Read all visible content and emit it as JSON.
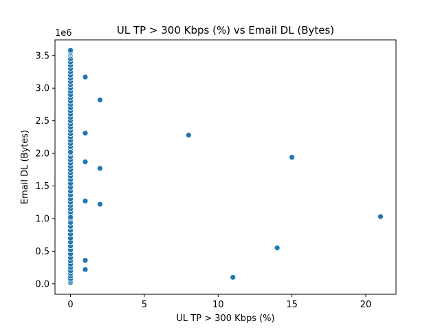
{
  "chart_data": {
    "type": "scatter",
    "title": "UL TP > 300 Kbps (%) vs Email DL (Bytes)",
    "xlabel": "UL TP > 300 Kbps (%)",
    "ylabel": "Email DL (Bytes)",
    "y_offset_label": "1e6",
    "xlim": [
      -1.05,
      22.05
    ],
    "ylim": [
      -0.16,
      3.74
    ],
    "x_ticks": [
      0,
      5,
      10,
      15,
      20
    ],
    "x_tick_labels": [
      "0",
      "5",
      "10",
      "15",
      "20"
    ],
    "y_ticks": [
      0.0,
      0.5,
      1.0,
      1.5,
      2.0,
      2.5,
      3.0,
      3.5
    ],
    "y_tick_labels": [
      "0.0",
      "0.5",
      "1.0",
      "1.5",
      "2.0",
      "2.5",
      "3.0",
      "3.5"
    ],
    "grid": false,
    "legend": "none",
    "marker_color": "#1f77b4",
    "series": [
      {
        "x": [
          1,
          2,
          1,
          2,
          8,
          15,
          1,
          2,
          1,
          2,
          21,
          14,
          1,
          1,
          11
        ],
        "y": [
          3.17,
          2.82,
          2.31,
          1.77,
          2.28,
          1.94,
          1.87,
          1.22,
          1.27,
          1.22,
          1.03,
          0.55,
          0.36,
          0.22,
          0.1
        ]
      },
      {
        "x": [
          0,
          0,
          0,
          0,
          0,
          0,
          0,
          0,
          0,
          0,
          0,
          0,
          0,
          0,
          0,
          0,
          0,
          0,
          0,
          0,
          0,
          0,
          0,
          0,
          0,
          0,
          0,
          0,
          0,
          0,
          0,
          0,
          0,
          0,
          0,
          0,
          0,
          0,
          0,
          0,
          0,
          0,
          0,
          0,
          0,
          0,
          0,
          0,
          0,
          0,
          0,
          0,
          0,
          0,
          0,
          0,
          0,
          0,
          0,
          0,
          0,
          0,
          0,
          0,
          0,
          0,
          0,
          0,
          0,
          0,
          0,
          0,
          0,
          0,
          0
        ],
        "y": [
          0.02,
          0.05,
          0.08,
          0.12,
          0.16,
          0.2,
          0.25,
          0.3,
          0.35,
          0.4,
          0.46,
          0.52,
          0.58,
          0.64,
          0.7,
          0.76,
          0.82,
          0.88,
          0.94,
          1.0,
          1.05,
          1.1,
          1.15,
          1.2,
          1.25,
          1.3,
          1.36,
          1.42,
          1.48,
          1.54,
          1.6,
          1.65,
          1.7,
          1.75,
          1.8,
          1.85,
          1.9,
          1.95,
          2.0,
          2.05,
          2.1,
          2.15,
          2.2,
          2.25,
          2.3,
          2.35,
          2.4,
          2.45,
          2.5,
          2.55,
          2.6,
          2.65,
          2.7,
          2.75,
          2.8,
          2.85,
          2.9,
          2.95,
          3.0,
          3.05,
          3.1,
          3.15,
          3.2,
          3.25,
          3.3,
          3.35,
          3.4,
          3.45,
          3.5,
          3.52,
          3.54,
          3.56,
          3.58,
          1.02,
          2.02
        ]
      }
    ]
  }
}
